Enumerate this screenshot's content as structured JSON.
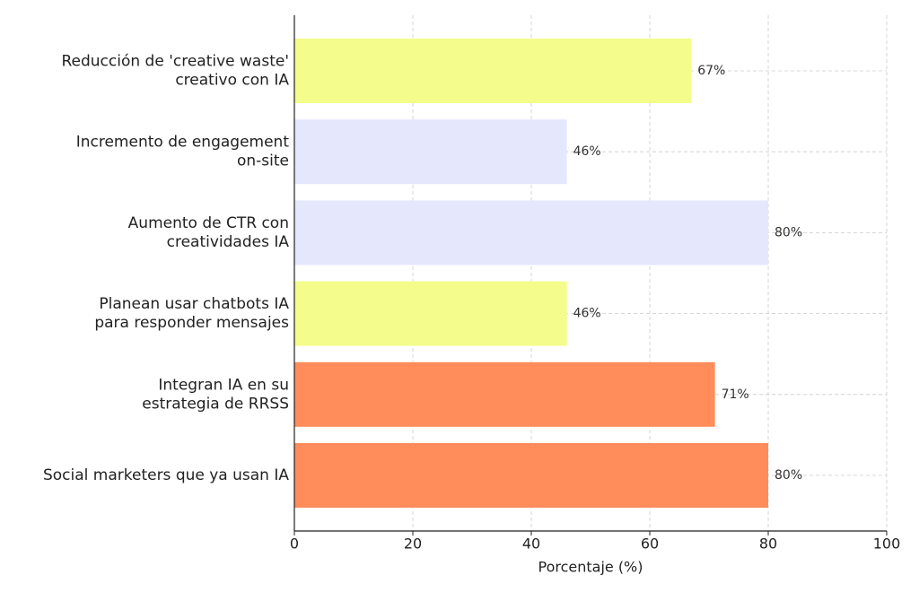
{
  "chart_data": {
    "type": "barh",
    "categories": [
      "Reducción de 'creative waste'\ncreativo con IA",
      "Incremento de engagement\non-site",
      "Aumento de CTR con\ncreatividades IA",
      "Planean usar chatbots IA\npara responder mensajes",
      "Integran IA en su\nestrategia de RRSS",
      "Social marketers que ya usan IA"
    ],
    "values": [
      67,
      46,
      80,
      46,
      71,
      80
    ],
    "value_labels": [
      "67%",
      "46%",
      "80%",
      "46%",
      "71%",
      "80%"
    ],
    "colors": [
      "#f4fd8b",
      "#e5e7fd",
      "#e5e7fd",
      "#f4fd8b",
      "#ff8c5a",
      "#ff8c5a"
    ],
    "xlabel": "Porcentaje (%)",
    "xlim": [
      0,
      100
    ],
    "xticks": [
      0,
      20,
      40,
      60,
      80,
      100
    ],
    "grid": true
  }
}
